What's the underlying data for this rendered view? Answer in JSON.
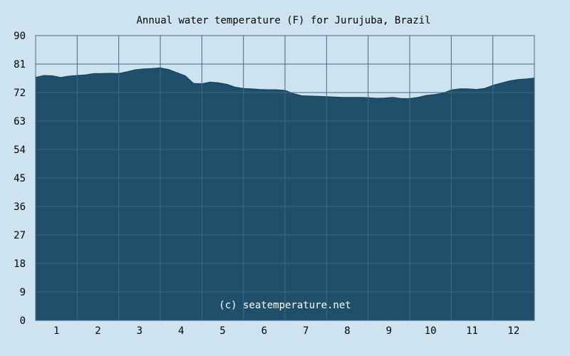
{
  "chart_data": {
    "type": "area",
    "title": "Annual water temperature (F) for Jurujuba, Brazil",
    "xlabel": "",
    "ylabel": "",
    "xlim": [
      0.5,
      12.5
    ],
    "ylim": [
      0,
      90
    ],
    "x_ticks": [
      1,
      2,
      3,
      4,
      5,
      6,
      7,
      8,
      9,
      10,
      11,
      12
    ],
    "y_ticks": [
      0,
      9,
      18,
      27,
      36,
      45,
      54,
      63,
      72,
      81,
      90
    ],
    "grid": true,
    "legend": "none",
    "watermark": "(c) seatemperature.net",
    "colors": {
      "background": "#cde3ef",
      "plot_background": "#cde3ef",
      "area_fill": "#1f4f6b",
      "area_edge": "#153d55",
      "grid": "#3d6b8a",
      "text": "#000000",
      "watermark_text": "#ffffff"
    },
    "series": [
      {
        "x": [
          0.5,
          0.7,
          0.9,
          1.1,
          1.3,
          1.5,
          1.7,
          1.9,
          2.1,
          2.3,
          2.5,
          2.7,
          2.9,
          3.1,
          3.3,
          3.5,
          3.7,
          3.9,
          4.1,
          4.3,
          4.5,
          4.7,
          4.9,
          5.1,
          5.3,
          5.5,
          5.7,
          5.9,
          6.1,
          6.3,
          6.5,
          6.7,
          6.9,
          7.1,
          7.3,
          7.5,
          7.7,
          7.9,
          8.1,
          8.3,
          8.5,
          8.7,
          8.9,
          9.1,
          9.3,
          9.5,
          9.7,
          9.9,
          10.1,
          10.3,
          10.5,
          10.7,
          10.9,
          11.1,
          11.3,
          11.5,
          11.7,
          11.9,
          12.1,
          12.3,
          12.5
        ],
        "values": [
          76.8,
          77.4,
          77.3,
          76.8,
          77.2,
          77.4,
          77.6,
          78.0,
          78.0,
          78.1,
          78.0,
          78.6,
          79.2,
          79.5,
          79.6,
          79.8,
          79.3,
          78.3,
          77.3,
          74.9,
          74.8,
          75.3,
          75.1,
          74.6,
          73.7,
          73.3,
          73.2,
          73.0,
          72.9,
          72.9,
          72.7,
          71.7,
          71.0,
          70.9,
          70.8,
          70.7,
          70.6,
          70.5,
          70.5,
          70.5,
          70.4,
          70.2,
          70.3,
          70.5,
          70.1,
          70.1,
          70.5,
          71.1,
          71.4,
          71.8,
          72.8,
          73.2,
          73.2,
          73.0,
          73.3,
          74.3,
          75.0,
          75.7,
          76.1,
          76.3,
          76.6
        ]
      }
    ]
  }
}
